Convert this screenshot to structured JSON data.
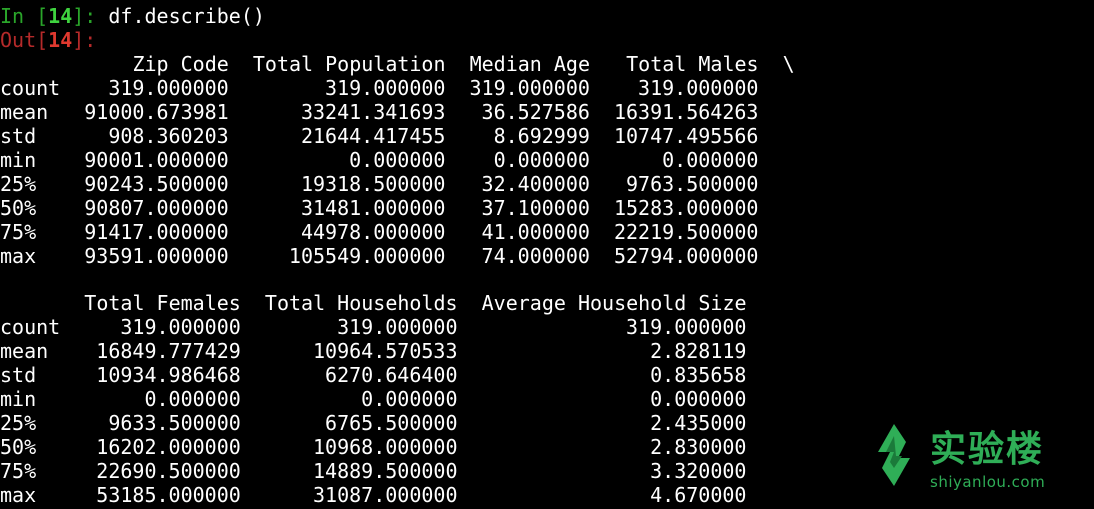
{
  "prompt_in": {
    "prefix": "In [",
    "number": "14",
    "suffix": "]: ",
    "command": "df.describe()"
  },
  "prompt_out": {
    "prefix": "Out[",
    "number": "14",
    "suffix": "]:"
  },
  "table1": {
    "header_line": "           Zip Code  Total Population  Median Age   Total Males  \\",
    "rows": [
      {
        "label": "count",
        "values": [
          "319.000000",
          "319.000000",
          "319.000000",
          "319.000000"
        ]
      },
      {
        "label": "mean",
        "values": [
          "91000.673981",
          "33241.341693",
          "36.527586",
          "16391.564263"
        ]
      },
      {
        "label": "std",
        "values": [
          "908.360203",
          "21644.417455",
          "8.692999",
          "10747.495566"
        ]
      },
      {
        "label": "min",
        "values": [
          "90001.000000",
          "0.000000",
          "0.000000",
          "0.000000"
        ]
      },
      {
        "label": "25%",
        "values": [
          "90243.500000",
          "19318.500000",
          "32.400000",
          "9763.500000"
        ]
      },
      {
        "label": "50%",
        "values": [
          "90807.000000",
          "31481.000000",
          "37.100000",
          "15283.000000"
        ]
      },
      {
        "label": "75%",
        "values": [
          "91417.000000",
          "44978.000000",
          "41.000000",
          "22219.500000"
        ]
      },
      {
        "label": "max",
        "values": [
          "93591.000000",
          "105549.000000",
          "74.000000",
          "52794.000000"
        ]
      }
    ]
  },
  "table2": {
    "header_line": "       Total Females  Total Households  Average Household Size",
    "rows": [
      {
        "label": "count",
        "values": [
          "319.000000",
          "319.000000",
          "319.000000"
        ]
      },
      {
        "label": "mean",
        "values": [
          "16849.777429",
          "10964.570533",
          "2.828119"
        ]
      },
      {
        "label": "std",
        "values": [
          "10934.986468",
          "6270.646400",
          "0.835658"
        ]
      },
      {
        "label": "min",
        "values": [
          "0.000000",
          "0.000000",
          "0.000000"
        ]
      },
      {
        "label": "25%",
        "values": [
          "9633.500000",
          "6765.500000",
          "2.435000"
        ]
      },
      {
        "label": "50%",
        "values": [
          "16202.000000",
          "10968.000000",
          "2.830000"
        ]
      },
      {
        "label": "75%",
        "values": [
          "22690.500000",
          "14889.500000",
          "3.320000"
        ]
      },
      {
        "label": "max",
        "values": [
          "53185.000000",
          "31087.000000",
          "4.670000"
        ]
      }
    ]
  },
  "watermark": {
    "name": "实验楼",
    "url": "shiyanlou.com",
    "icon": "leaf-logo-icon",
    "color": "#2fae57"
  }
}
